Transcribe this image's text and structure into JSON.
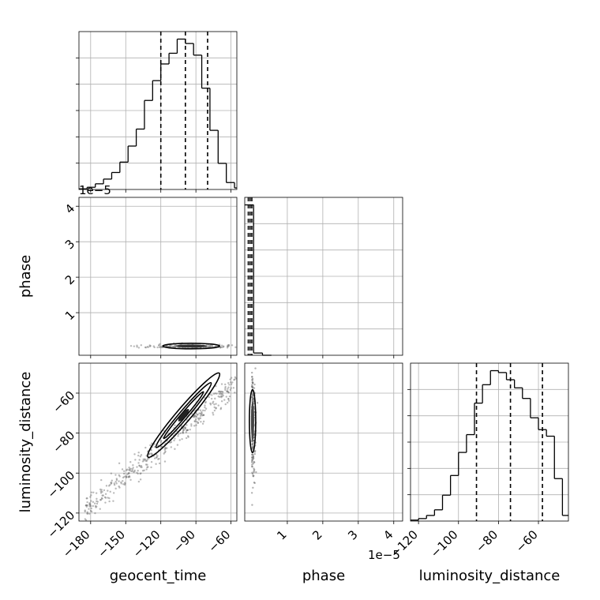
{
  "chart_data": {
    "type": "corner",
    "parameters": [
      "geocent_time",
      "phase",
      "luminosity_distance"
    ],
    "offset_labels": {
      "phase_y": "1e−5",
      "phase_x": "1e−5"
    },
    "grid": true,
    "axes": {
      "geocent_time": {
        "range": [
          -190,
          -55
        ],
        "ticks": [
          -180,
          -150,
          -120,
          -90,
          -60
        ],
        "tick_labels": [
          "−180",
          "−150",
          "−120",
          "−90",
          "−60"
        ]
      },
      "phase": {
        "range": [
          -0.2,
          4.25
        ],
        "ticks": [
          1,
          2,
          3,
          4
        ],
        "tick_labels": [
          "1",
          "2",
          "3",
          "4"
        ]
      },
      "luminosity_distance": {
        "range": [
          -124,
          -45
        ],
        "ticks": [
          -120,
          -100,
          -80,
          -60
        ],
        "tick_labels": [
          "−120",
          "−100",
          "−80",
          "−60"
        ]
      }
    },
    "histograms": {
      "geocent_time": {
        "bin_edges": [
          -190,
          -183,
          -176,
          -169,
          -162,
          -155,
          -148,
          -141,
          -134,
          -127,
          -120,
          -113,
          -106,
          -99,
          -92,
          -85,
          -78,
          -71,
          -64,
          -57,
          -50
        ],
        "counts": [
          0.2,
          0.7,
          1.8,
          3.3,
          5.4,
          8.7,
          13.8,
          19.2,
          28.3,
          34.6,
          39.9,
          43.3,
          47.8,
          46.4,
          42.7,
          32.2,
          18.8,
          8.3,
          2.2,
          0.5
        ],
        "quantiles": [
          -120,
          -99,
          -80
        ]
      },
      "phase": {
        "bin_edges": [
          -0.2,
          0.05,
          0.3,
          0.55
        ],
        "counts": [
          40.0,
          0.6,
          0.0
        ],
        "quantiles": [
          -0.1,
          -0.05,
          0.0
        ]
      },
      "luminosity_distance": {
        "bin_edges": [
          -124,
          -120,
          -116,
          -112,
          -108,
          -104,
          -100,
          -96,
          -92,
          -88,
          -84,
          -80,
          -76,
          -72,
          -68,
          -64,
          -60,
          -56,
          -52,
          -48,
          -44
        ],
        "counts": [
          0.3,
          0.8,
          1.8,
          3.6,
          8.3,
          14.6,
          22.0,
          27.7,
          37.8,
          43.7,
          48.2,
          47.6,
          45.3,
          42.7,
          39.3,
          33.1,
          29.3,
          27.2,
          13.6,
          1.8
        ],
        "quantiles": [
          -91,
          -74,
          -58
        ]
      }
    },
    "pairs": [
      {
        "x": "geocent_time",
        "y": "phase",
        "kind": "2d-density",
        "mean_y": 0.02
      },
      {
        "x": "geocent_time",
        "y": "luminosity_distance",
        "kind": "2d-density",
        "relation": "linear",
        "slope": 0.5,
        "intercept": -27
      },
      {
        "x": "phase",
        "y": "luminosity_distance",
        "kind": "2d-density"
      }
    ]
  }
}
